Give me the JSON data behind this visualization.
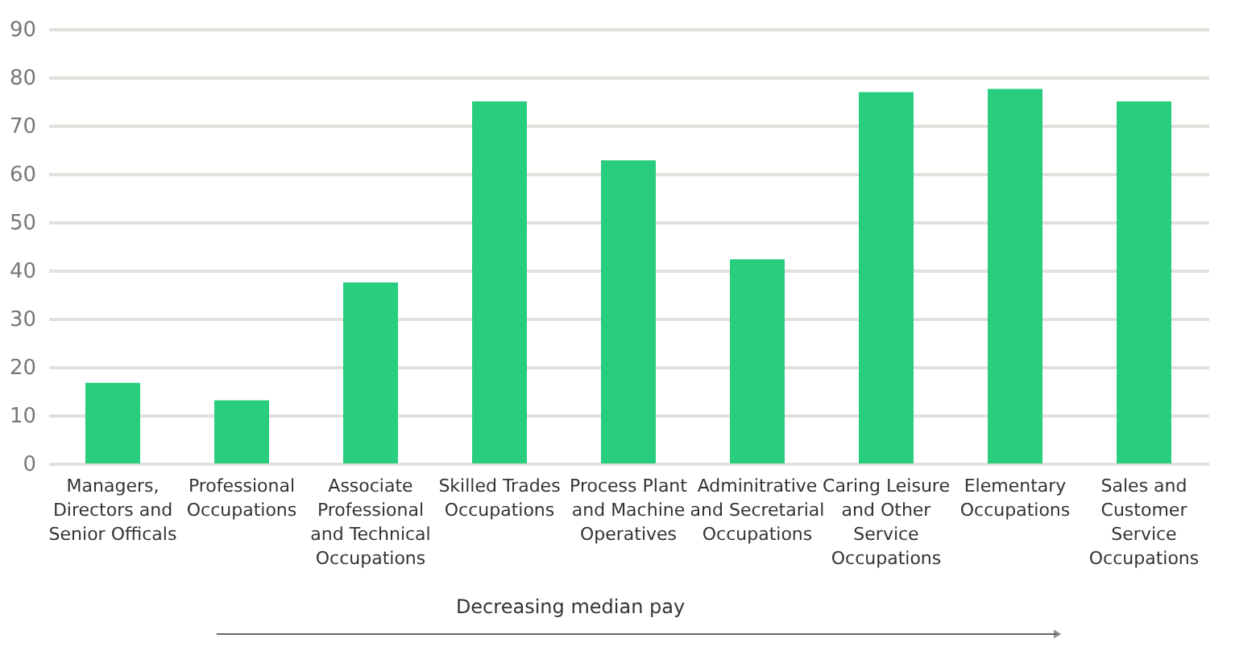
{
  "chart_data": {
    "type": "bar",
    "categories": [
      "Managers, Directors and Senior Officals",
      "Professional Occupations",
      "Associate Professional and Technical Occupations",
      "Skilled Trades Occupations",
      "Process Plant and Machine Operatives",
      "Adminitrative and Secretarial Occupations",
      "Caring Leisure and Other Service Occupations",
      "Elementary Occupations",
      "Sales and Customer Service Occupations"
    ],
    "values": [
      16.7,
      13.1,
      37.5,
      75.0,
      62.8,
      42.3,
      76.9,
      77.6,
      75.0
    ],
    "color": "#28cd7e",
    "ylim": [
      0,
      90
    ],
    "yticks": [
      0,
      10,
      20,
      30,
      40,
      50,
      60,
      70,
      80,
      90
    ],
    "grid": "y",
    "annotations": [
      "Decreasing median pay"
    ]
  }
}
